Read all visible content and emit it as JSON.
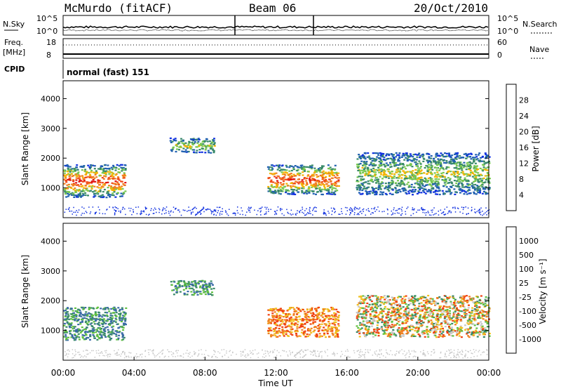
{
  "header": {
    "station": "McMurdo (fitACF)",
    "beam": "Beam 06",
    "date": "20/Oct/2010"
  },
  "top_panels": {
    "nsky_label": "N.Sky",
    "nsky_ticks": [
      "10^5",
      "10^0"
    ],
    "nsearch_label": "N.Search",
    "nsearch_ticks": [
      "10^5",
      "10^0"
    ],
    "freq_label": "Freq.",
    "freq_unit": "[MHz]",
    "freq_ticks": [
      "18",
      "8"
    ],
    "nave_label": "Nave",
    "nave_ticks": [
      "60",
      "0"
    ],
    "cpid_label": "CPID",
    "cpid_value": "normal (fast) 151"
  },
  "chart_data": [
    {
      "type": "heatmap",
      "panel": "power",
      "ylabel": "Slant Range [km]",
      "ylim": [
        0,
        4600
      ],
      "yticks": [
        1000,
        2000,
        3000,
        4000
      ],
      "xlim": [
        0,
        24
      ],
      "colorbar": {
        "label": "Power [dB]",
        "tick_labels": [
          "28",
          "24",
          "20",
          "16",
          "12",
          "8",
          "4"
        ],
        "colors": [
          "#e01010",
          "#f04818",
          "#f07f20",
          "#f4b400",
          "#78c850",
          "#3a8a6a",
          "#2060b0",
          "#1030e0"
        ]
      },
      "features": [
        {
          "t_start": 0.0,
          "t_end": 3.5,
          "range_low": 700,
          "range_high": 1800,
          "level": "strong"
        },
        {
          "t_start": 6.0,
          "t_end": 8.5,
          "range_low": 2200,
          "range_high": 2700,
          "level": "medium"
        },
        {
          "t_start": 11.5,
          "t_end": 15.5,
          "range_low": 800,
          "range_high": 1800,
          "level": "strong"
        },
        {
          "t_start": 16.5,
          "t_end": 24.0,
          "range_low": 800,
          "range_high": 2200,
          "level": "medium"
        }
      ]
    },
    {
      "type": "heatmap",
      "panel": "velocity",
      "ylabel": "Slant Range [km]",
      "ylim": [
        0,
        4600
      ],
      "yticks": [
        1000,
        2000,
        3000,
        4000
      ],
      "xlim": [
        0,
        24
      ],
      "xticks": [
        "00:00",
        "04:00",
        "08:00",
        "12:00",
        "16:00",
        "20:00",
        "00:00"
      ],
      "xlabel": "Time UT",
      "colorbar": {
        "label": "Velocity [m s⁻¹]",
        "tick_labels": [
          "1000",
          "500",
          "100",
          "25",
          "-25",
          "-100",
          "-500",
          "-1000"
        ],
        "colors": [
          "#2040b0",
          "#3a6aa8",
          "#3a8a6a",
          "#60c040",
          "#c8c8c8",
          "#f0c020",
          "#f08020",
          "#f04010",
          "#e01010"
        ]
      },
      "features": [
        {
          "t_start": 0.0,
          "t_end": 3.5,
          "range_low": 700,
          "range_high": 1800,
          "velocity": "positive"
        },
        {
          "t_start": 6.0,
          "t_end": 8.5,
          "range_low": 2200,
          "range_high": 2700,
          "velocity": "positive"
        },
        {
          "t_start": 11.5,
          "t_end": 15.5,
          "range_low": 800,
          "range_high": 1800,
          "velocity": "negative"
        },
        {
          "t_start": 16.5,
          "t_end": 24.0,
          "range_low": 800,
          "range_high": 2200,
          "velocity": "mixed"
        }
      ]
    }
  ]
}
